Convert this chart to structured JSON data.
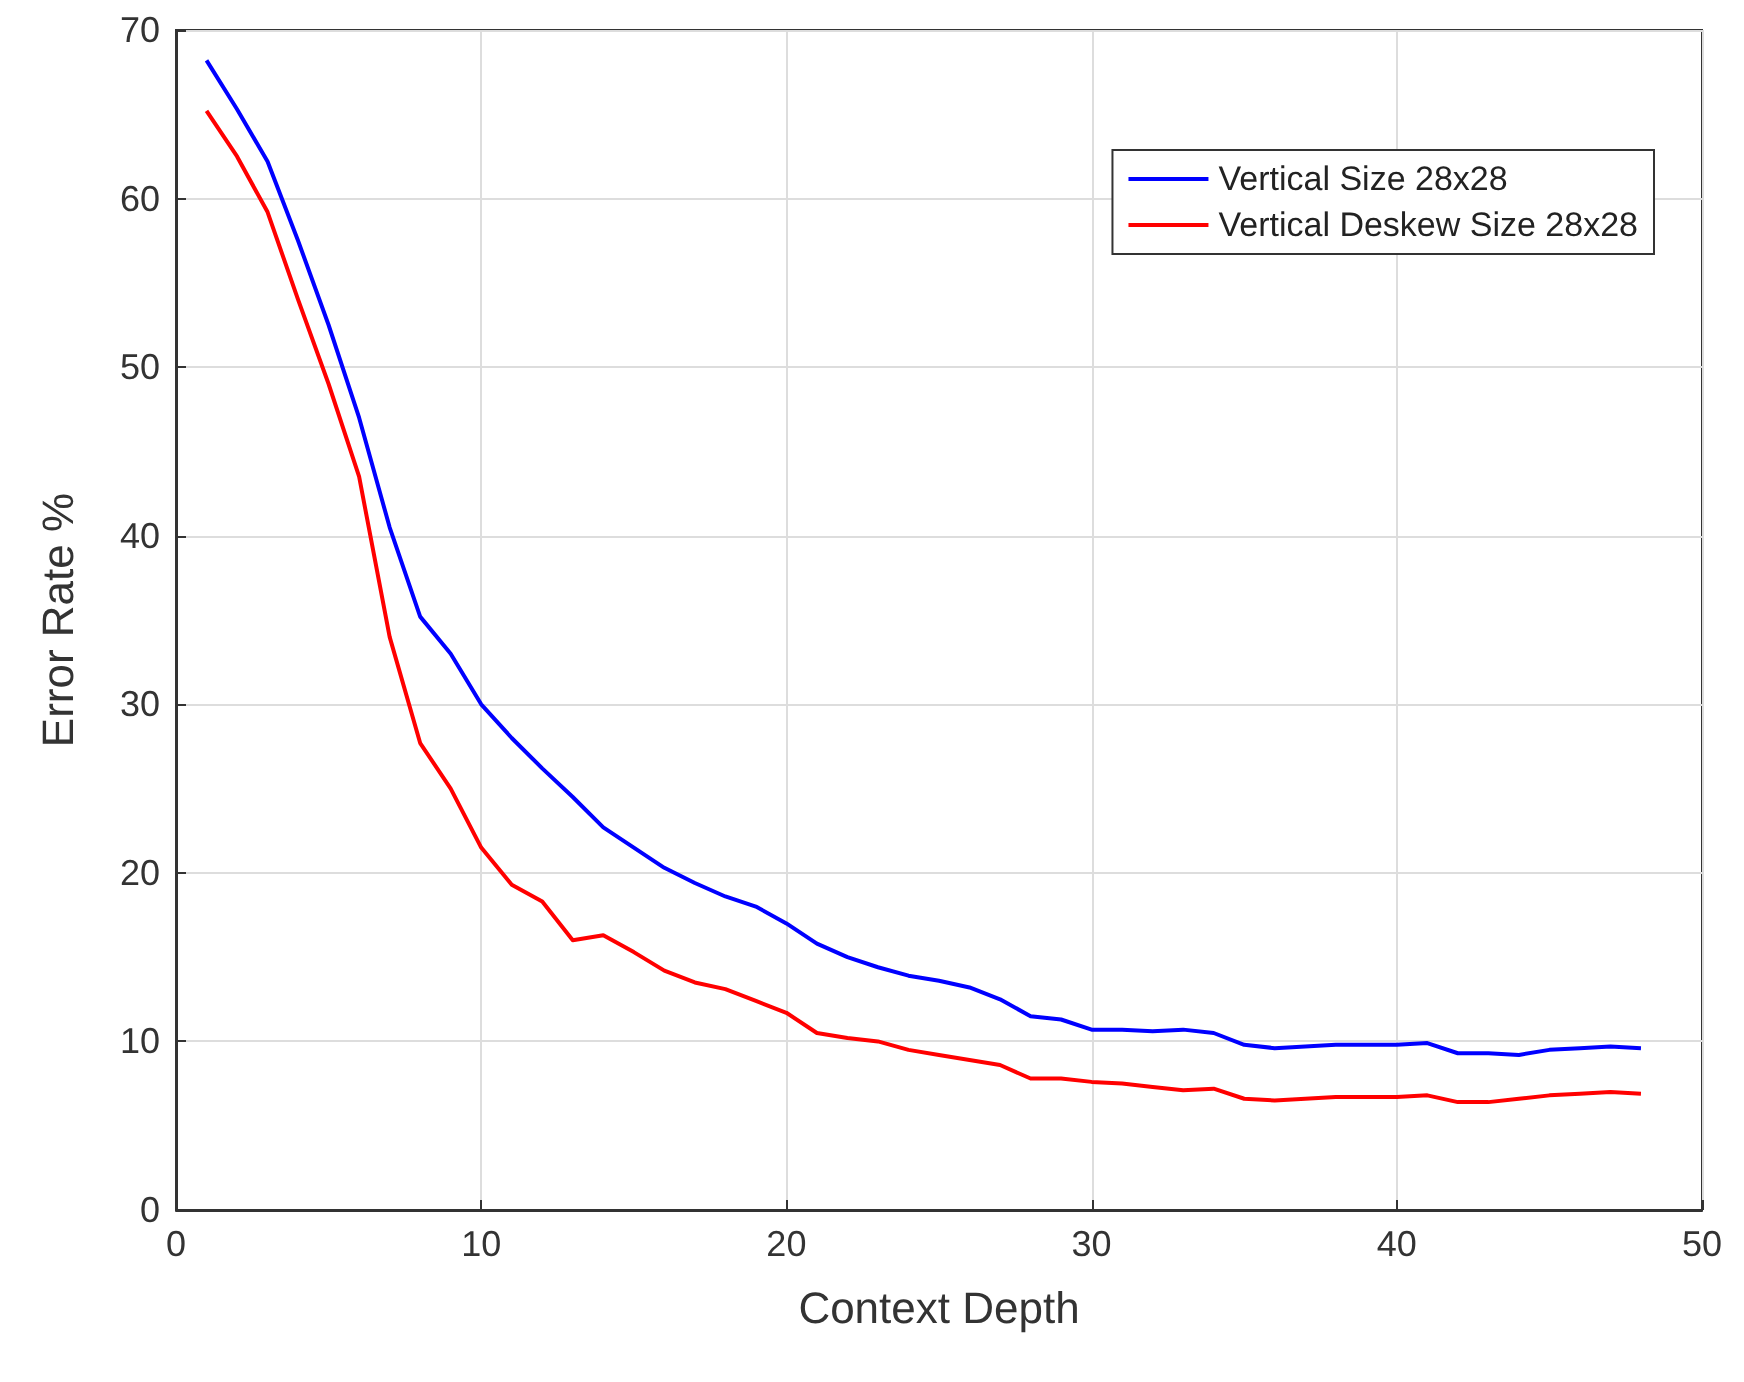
{
  "chart_data": {
    "type": "line",
    "xlabel": "Context Depth",
    "ylabel": "Error Rate %",
    "x": [
      1,
      2,
      3,
      4,
      5,
      6,
      7,
      8,
      9,
      10,
      11,
      12,
      13,
      14,
      15,
      16,
      17,
      18,
      19,
      20,
      21,
      22,
      23,
      24,
      25,
      26,
      27,
      28,
      29,
      30,
      31,
      32,
      33,
      34,
      35,
      36,
      37,
      38,
      39,
      40,
      41,
      42,
      43,
      44,
      45,
      46,
      47,
      48
    ],
    "series": [
      {
        "name": "Vertical Size 28x28",
        "color": "#0000ff",
        "values": [
          68.2,
          65.3,
          62.2,
          57.5,
          52.5,
          47,
          40.5,
          35.2,
          33,
          30,
          28,
          26.2,
          24.5,
          22.7,
          21.5,
          20.3,
          19.4,
          18.6,
          18,
          17,
          15.8,
          15,
          14.4,
          13.9,
          13.6,
          13.2,
          12.5,
          11.5,
          11.3,
          10.7,
          10.7,
          10.6,
          10.7,
          10.5,
          9.8,
          9.6,
          9.7,
          9.8,
          9.8,
          9.8,
          9.9,
          9.3,
          9.3,
          9.2,
          9.5,
          9.6,
          9.7,
          9.6
        ]
      },
      {
        "name": "Vertical Deskew Size 28x28",
        "color": "#ff0000",
        "values": [
          65.2,
          62.5,
          59.2,
          54,
          49,
          43.5,
          34,
          27.7,
          25,
          21.5,
          19.3,
          18.3,
          16,
          16.3,
          15.3,
          14.2,
          13.5,
          13.1,
          12.4,
          11.7,
          10.5,
          10.2,
          10,
          9.5,
          9.2,
          8.9,
          8.6,
          7.8,
          7.8,
          7.6,
          7.5,
          7.3,
          7.1,
          7.2,
          6.6,
          6.5,
          6.6,
          6.7,
          6.7,
          6.7,
          6.8,
          6.4,
          6.4,
          6.6,
          6.8,
          6.9,
          7,
          6.9
        ]
      }
    ],
    "xlim": [
      0,
      50
    ],
    "xticks": [
      0,
      10,
      20,
      30,
      40,
      50
    ],
    "ylim": [
      0,
      70
    ],
    "yticks": [
      0,
      10,
      20,
      30,
      40,
      50,
      60,
      70
    ],
    "grid": true,
    "legend": "top right",
    "marker": "none",
    "line_style": "solid"
  }
}
